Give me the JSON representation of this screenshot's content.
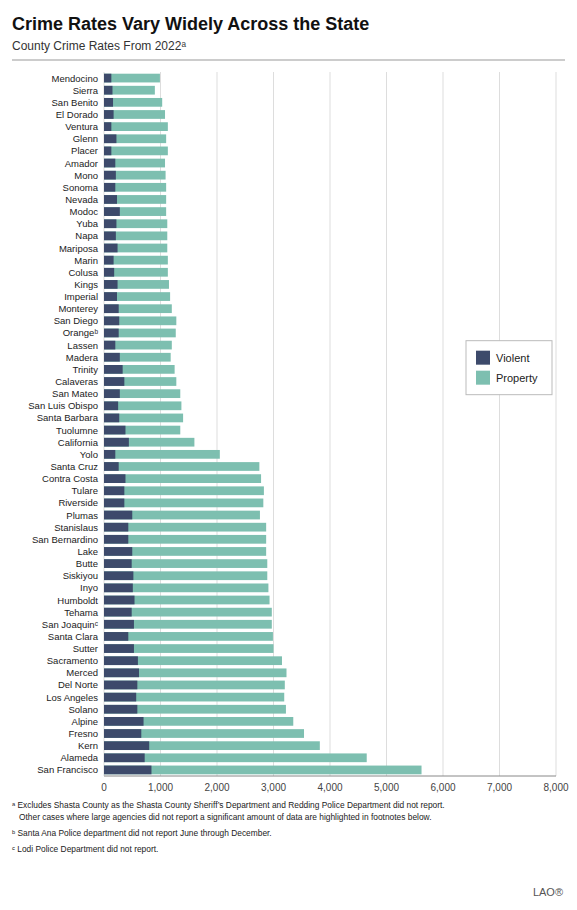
{
  "chart_data": {
    "type": "bar",
    "orientation": "horizontal",
    "stacked": false,
    "title": "Crime Rates Vary Widely Across the State",
    "subtitle": "County Crime Rates From 2022ᵃ",
    "annotations": [
      "ᵃ Excludes Shasta County as the Shasta County Sheriff’s Department and Redding Police Department did not report.\n   Other cases where large agencies did not report a significant amount of data are highlighted in footnotes below.",
      "ᵇ Santa Ana Police department did not report June through December.",
      "ᶜ Lodi Police Department did not report.",
      "LAO®"
    ],
    "categories": [
      "Mendocino",
      "Sierra",
      "San Benito",
      "El Dorado",
      "Ventura",
      "Glenn",
      "Placer",
      "Amador",
      "Mono",
      "Sonoma",
      "Nevada",
      "Modoc",
      "Yuba",
      "Napa",
      "Mariposa",
      "Marin",
      "Colusa",
      "Kings",
      "Imperial",
      "Monterey",
      "San Diego",
      "Orangeᵇ",
      "Lassen",
      "Madera",
      "Trinity",
      "Calaveras",
      "San Mateo",
      "San Luis Obispo",
      "Santa Barbara",
      "Tuolumne",
      "California",
      "Yolo",
      "Santa Cruz",
      "Contra Costa",
      "Tulare",
      "Riverside",
      "Plumas",
      "Stanislaus",
      "San Bernardino",
      "Lake",
      "Butte",
      "Siskiyou",
      "Inyo",
      "Humboldt",
      "Tehama",
      "San Joaquinᶜ",
      "Santa Clara",
      "Sutter",
      "Sacramento",
      "Merced",
      "Del Norte",
      "Los Angeles",
      "Solano",
      "Alpine",
      "Fresno",
      "Kern",
      "Alameda",
      "San Francisco"
    ],
    "series": [
      {
        "name": "Violent",
        "color": "#3d4a6b",
        "values": [
          130,
          150,
          160,
          170,
          130,
          220,
          130,
          200,
          210,
          200,
          230,
          280,
          220,
          210,
          240,
          170,
          180,
          240,
          230,
          260,
          270,
          260,
          200,
          280,
          330,
          360,
          280,
          250,
          270,
          380,
          440,
          200,
          260,
          380,
          360,
          360,
          500,
          430,
          430,
          500,
          490,
          520,
          510,
          540,
          490,
          530,
          430,
          530,
          600,
          620,
          590,
          570,
          590,
          700,
          660,
          800,
          720,
          840
        ]
      },
      {
        "name": "Property",
        "color": "#7dbfb0",
        "values": [
          990,
          900,
          1030,
          1080,
          1130,
          1100,
          1130,
          1080,
          1090,
          1100,
          1100,
          1100,
          1120,
          1120,
          1120,
          1130,
          1130,
          1150,
          1170,
          1200,
          1280,
          1270,
          1200,
          1180,
          1250,
          1280,
          1350,
          1370,
          1400,
          1350,
          1600,
          2050,
          2750,
          2780,
          2830,
          2820,
          2760,
          2870,
          2870,
          2870,
          2890,
          2890,
          2910,
          2930,
          2970,
          2970,
          2990,
          3000,
          3150,
          3230,
          3200,
          3190,
          3220,
          3350,
          3540,
          3820,
          4650,
          5620
        ]
      }
    ],
    "xlim": [
      0,
      8000
    ],
    "xticks": [
      0,
      {
        "value": 1000,
        "label": "1,000"
      },
      {
        "value": 2000,
        "label": "2,000"
      },
      {
        "value": 3000,
        "label": "3,000"
      },
      {
        "value": 4000,
        "label": "4,000"
      },
      {
        "value": 5000,
        "label": "5,000"
      },
      {
        "value": 6000,
        "label": "6,000"
      },
      {
        "value": 7000,
        "label": "7,000"
      },
      {
        "value": 8000,
        "label": "8,000"
      }
    ],
    "grid": true,
    "legend": "right"
  }
}
